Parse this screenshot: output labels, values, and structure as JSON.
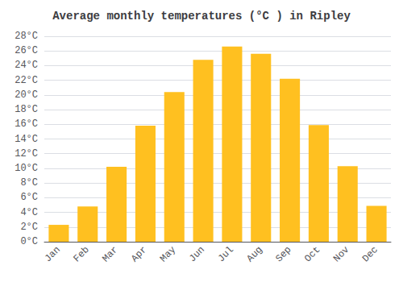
{
  "chart_data": {
    "type": "bar",
    "title": "Average monthly temperatures (°C ) in Ripley",
    "categories": [
      "Jan",
      "Feb",
      "Mar",
      "Apr",
      "May",
      "Jun",
      "Jul",
      "Aug",
      "Sep",
      "Oct",
      "Nov",
      "Dec"
    ],
    "values": [
      2.3,
      4.8,
      10.2,
      15.8,
      20.4,
      24.8,
      26.6,
      25.6,
      22.2,
      15.9,
      10.3,
      4.9
    ],
    "color": "#FFC020",
    "ylim": [
      0,
      28
    ],
    "yticks": [
      {
        "value": 0,
        "label": "0°C"
      },
      {
        "value": 2,
        "label": "2°C"
      },
      {
        "value": 4,
        "label": "4°C"
      },
      {
        "value": 6,
        "label": "6°C"
      },
      {
        "value": 8,
        "label": "8°C"
      },
      {
        "value": 10,
        "label": "10°C"
      },
      {
        "value": 12,
        "label": "12°C"
      },
      {
        "value": 14,
        "label": "14°C"
      },
      {
        "value": 16,
        "label": "16°C"
      },
      {
        "value": 18,
        "label": "18°C"
      },
      {
        "value": 20,
        "label": "20°C"
      },
      {
        "value": 22,
        "label": "22°C"
      },
      {
        "value": 24,
        "label": "24°C"
      },
      {
        "value": 26,
        "label": "26°C"
      },
      {
        "value": 28,
        "label": "28°C"
      }
    ],
    "grid": true
  }
}
